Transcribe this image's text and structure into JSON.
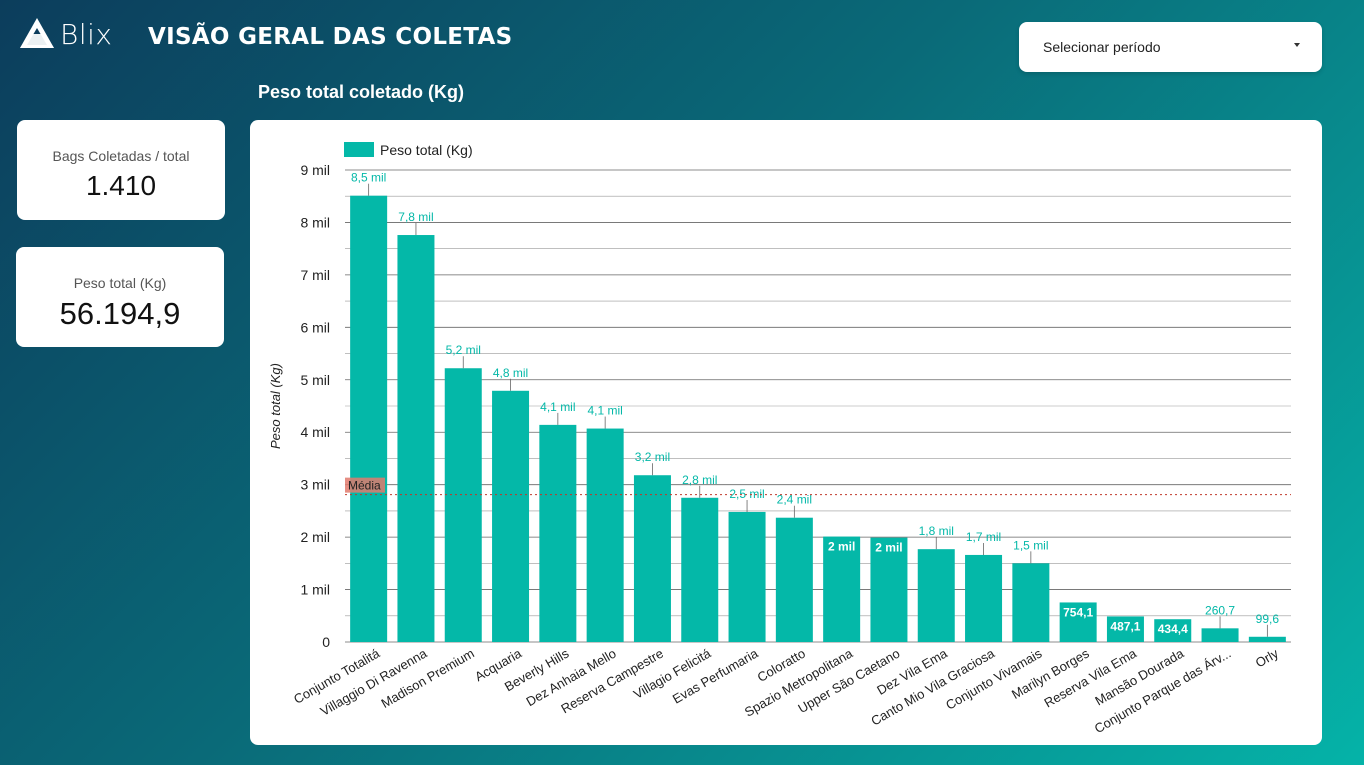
{
  "brand": {
    "name": "Blix"
  },
  "header": {
    "title": "VISÃO GERAL DAS COLETAS"
  },
  "period_select": {
    "label": "Selecionar período"
  },
  "kpis": [
    {
      "label": "Bags Coletadas / total",
      "value": "1.410"
    },
    {
      "label": "Peso total (Kg)",
      "value": "56.194,9"
    }
  ],
  "chart_heading": "Peso total coletado (Kg)",
  "colors": {
    "bar": "#04b8a8",
    "label": "#04b8a8",
    "average": "#c0392b",
    "average_tag": "#e07a6d"
  },
  "chart_data": {
    "type": "bar",
    "categories": [
      "Conjunto Totalitá",
      "Villaggio Di Ravenna",
      "Madison Premium",
      "Acquaria",
      "Beverly Hills",
      "Dez Anhaia Mello",
      "Reserva Campestre",
      "Villagio Felicitá",
      "Evas Perfumaria",
      "Coloratto",
      "Spazio Metropolitana",
      "Upper São Caetano",
      "Dez Vila Ema",
      "Canto Mio Vila Graciosa",
      "Conjunto Vivamais",
      "Marilyn Borges",
      "Reserva Vila Ema",
      "Mansão Dourada",
      "Conjunto Parque das Árv...",
      "Orly"
    ],
    "series": [
      {
        "name": "Peso total (Kg)",
        "values": [
          8510,
          7760,
          5220,
          4790,
          4140,
          4070,
          3180,
          2750,
          2480,
          2370,
          2010,
          1990,
          1770,
          1660,
          1500,
          754.1,
          487.1,
          434.4,
          260.7,
          99.6
        ]
      }
    ],
    "data_labels": [
      "8,5 mil",
      "7,8 mil",
      "5,2 mil",
      "4,8 mil",
      "4,1 mil",
      "4,1 mil",
      "3,2 mil",
      "2,8 mil",
      "2,5 mil",
      "2,4 mil",
      "2 mil",
      "2 mil",
      "1,8 mil",
      "1,7 mil",
      "1,5 mil",
      "754,1",
      "487,1",
      "434,4",
      "260,7",
      "99,6"
    ],
    "ylabel": "Peso total (Kg)",
    "ylim": [
      0,
      9000
    ],
    "yticks": [
      0,
      1000,
      2000,
      3000,
      4000,
      5000,
      6000,
      7000,
      8000,
      9000
    ],
    "ytick_labels": [
      "0",
      "1 mil",
      "2 mil",
      "3 mil",
      "4 mil",
      "5 mil",
      "6 mil",
      "7 mil",
      "8 mil",
      "9 mil"
    ],
    "average": {
      "label": "Média",
      "value": 2810
    },
    "legend": "top-left",
    "grid": true
  }
}
